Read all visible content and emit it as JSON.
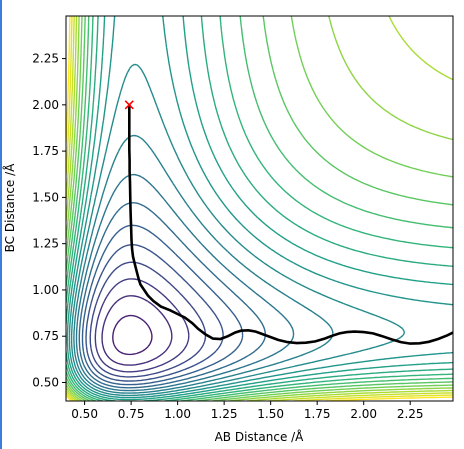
{
  "chart_data": {
    "type": "contour",
    "xlabel": "AB Distance /Å",
    "ylabel": "BC Distance /Å",
    "xlim": [
      0.4,
      2.48
    ],
    "ylim": [
      0.4,
      2.48
    ],
    "x_ticks": [
      "0.50",
      "0.75",
      "1.00",
      "1.25",
      "1.50",
      "1.75",
      "2.00",
      "2.25"
    ],
    "y_ticks": [
      "0.50",
      "0.75",
      "1.00",
      "1.25",
      "1.50",
      "1.75",
      "2.00",
      "2.25"
    ],
    "colormap": "viridis",
    "contour_levels": 24,
    "start_marker": {
      "x": 0.74,
      "y": 2.0,
      "symbol": "x",
      "color": "#ff0000"
    },
    "trajectory": [
      [
        0.74,
        2.0
      ],
      [
        0.74,
        1.96
      ],
      [
        0.74,
        1.9
      ],
      [
        0.74,
        1.83
      ],
      [
        0.74,
        1.76
      ],
      [
        0.742,
        1.7
      ],
      [
        0.742,
        1.64
      ],
      [
        0.744,
        1.58
      ],
      [
        0.745,
        1.52
      ],
      [
        0.746,
        1.46
      ],
      [
        0.748,
        1.4
      ],
      [
        0.75,
        1.34
      ],
      [
        0.752,
        1.27
      ],
      [
        0.755,
        1.22
      ],
      [
        0.76,
        1.18
      ],
      [
        0.77,
        1.14
      ],
      [
        0.78,
        1.1
      ],
      [
        0.79,
        1.06
      ],
      [
        0.8,
        1.03
      ],
      [
        0.82,
        1.0
      ],
      [
        0.84,
        0.97
      ],
      [
        0.87,
        0.94
      ],
      [
        0.91,
        0.91
      ],
      [
        0.96,
        0.89
      ],
      [
        1.0,
        0.87
      ],
      [
        1.04,
        0.85
      ],
      [
        1.08,
        0.82
      ],
      [
        1.11,
        0.79
      ],
      [
        1.15,
        0.76
      ],
      [
        1.19,
        0.737
      ],
      [
        1.23,
        0.735
      ],
      [
        1.27,
        0.75
      ],
      [
        1.31,
        0.77
      ],
      [
        1.34,
        0.78
      ],
      [
        1.38,
        0.782
      ],
      [
        1.42,
        0.775
      ],
      [
        1.46,
        0.76
      ],
      [
        1.5,
        0.745
      ],
      [
        1.54,
        0.73
      ],
      [
        1.59,
        0.718
      ],
      [
        1.64,
        0.713
      ],
      [
        1.69,
        0.715
      ],
      [
        1.74,
        0.722
      ],
      [
        1.79,
        0.737
      ],
      [
        1.83,
        0.752
      ],
      [
        1.87,
        0.765
      ],
      [
        1.91,
        0.772
      ],
      [
        1.95,
        0.775
      ],
      [
        2.0,
        0.772
      ],
      [
        2.05,
        0.765
      ],
      [
        2.1,
        0.75
      ],
      [
        2.15,
        0.733
      ],
      [
        2.2,
        0.718
      ],
      [
        2.25,
        0.71
      ],
      [
        2.3,
        0.712
      ],
      [
        2.35,
        0.72
      ],
      [
        2.4,
        0.735
      ],
      [
        2.45,
        0.755
      ],
      [
        2.48,
        0.77
      ]
    ],
    "grid": false
  }
}
